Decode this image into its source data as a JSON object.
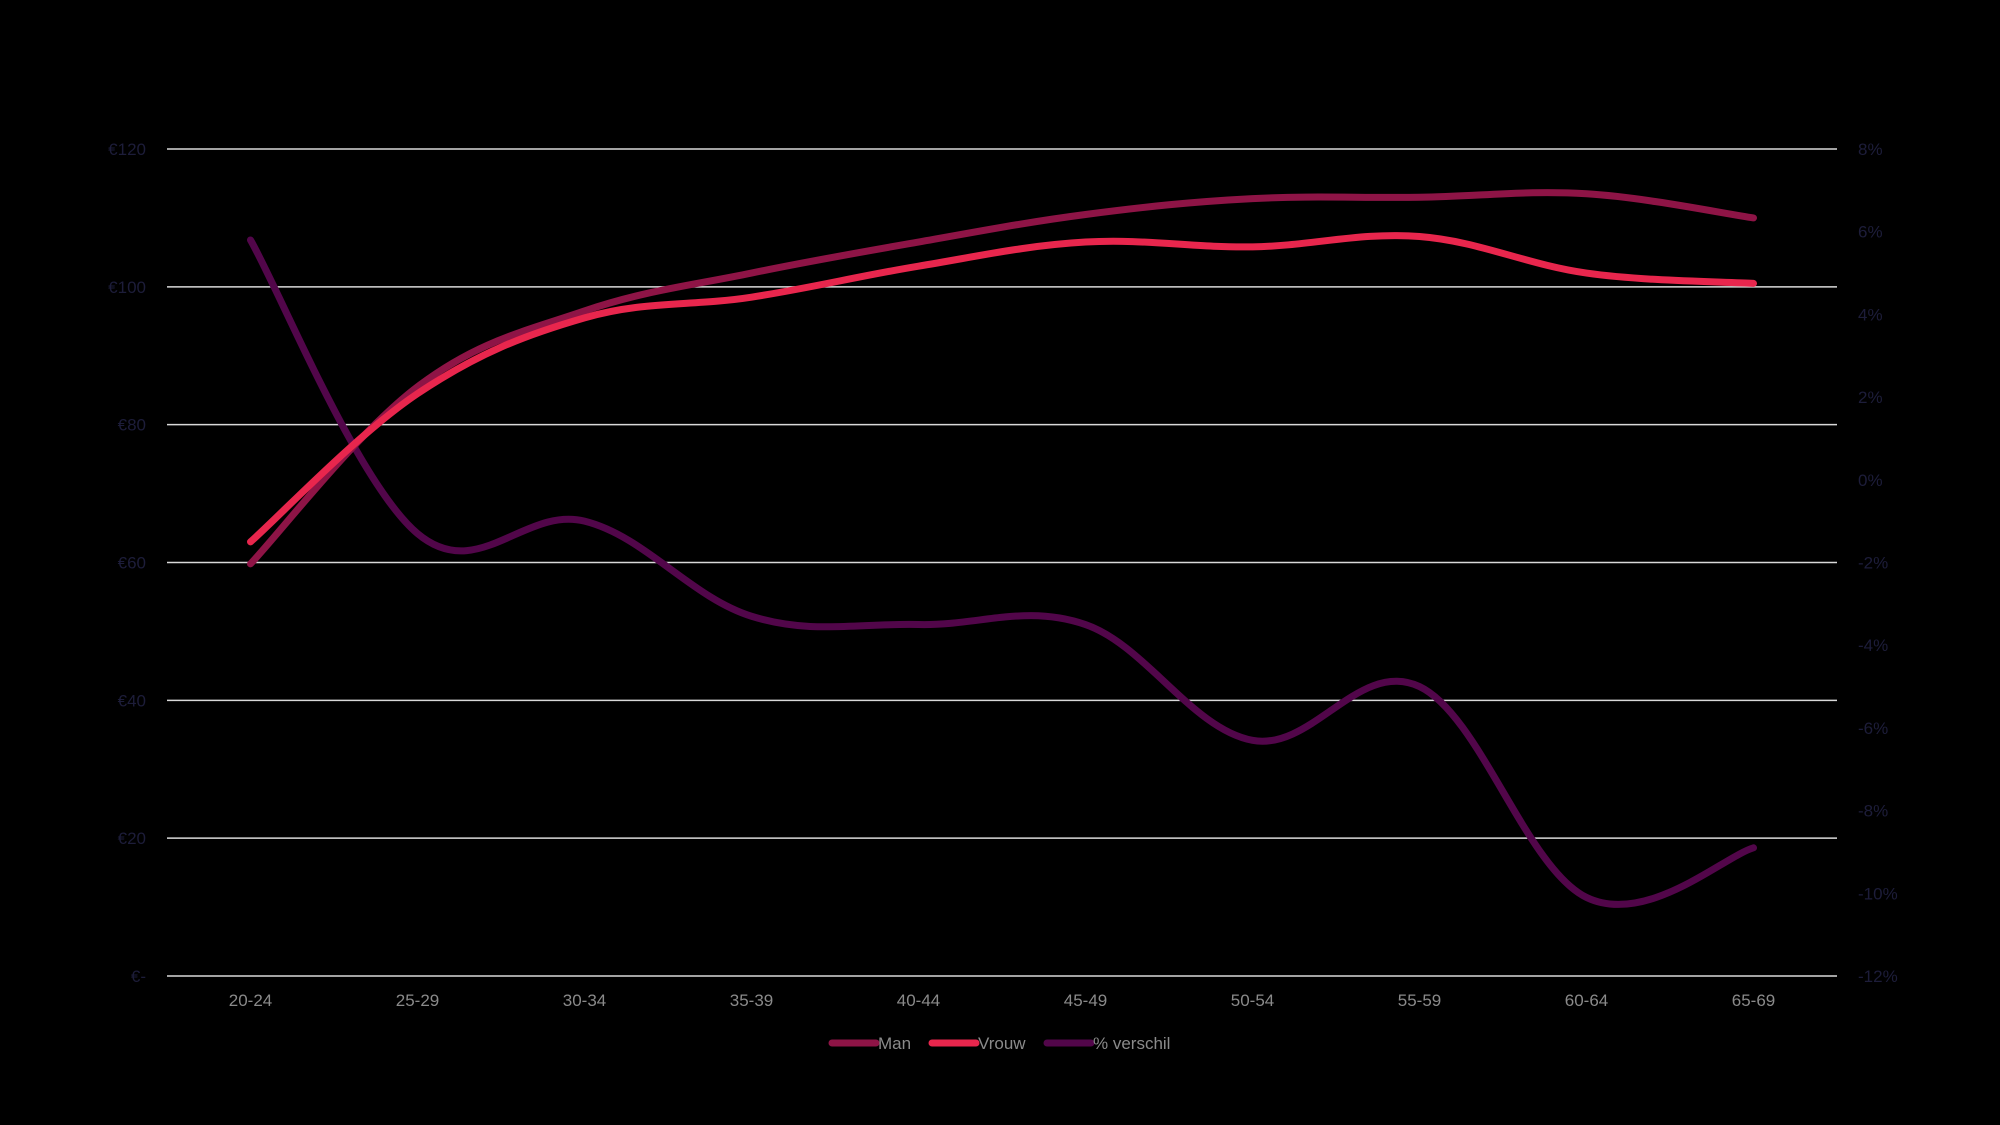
{
  "chart_data": {
    "type": "line",
    "title": "",
    "xlabel": "",
    "ylabel": "",
    "categories": [
      "20-24",
      "25-29",
      "30-34",
      "35-39",
      "40-44",
      "45-49",
      "50-54",
      "55-59",
      "60-64",
      "65-69"
    ],
    "y_left": {
      "ticks": [
        0,
        20,
        40,
        60,
        80,
        100,
        120
      ],
      "tick_labels": [
        "€-",
        "€20",
        "€40",
        "€60",
        "€80",
        "€100",
        "€120"
      ],
      "ylim": [
        0,
        120
      ]
    },
    "y_right": {
      "ticks": [
        -12,
        -10,
        -8,
        -6,
        -4,
        -2,
        0,
        2,
        4,
        6,
        8
      ],
      "tick_labels": [
        "-12%",
        "-10%",
        "-8%",
        "-6%",
        "-4%",
        "-2%",
        "0%",
        "2%",
        "4%",
        "6%",
        "8%"
      ],
      "ylim": [
        -12,
        8
      ]
    },
    "series": [
      {
        "name": "Man",
        "axis": "left",
        "color": "#8e1446",
        "values": [
          59.8,
          85.5,
          96.5,
          102.0,
          106.5,
          110.5,
          112.8,
          113.0,
          113.5,
          110.0
        ]
      },
      {
        "name": "Vrouw",
        "axis": "left",
        "color": "#e8264d",
        "values": [
          63.0,
          84.5,
          95.5,
          98.5,
          103.0,
          106.5,
          105.8,
          107.3,
          102.0,
          100.5
        ]
      },
      {
        "name": "% verschil",
        "axis": "right",
        "color": "#52064a",
        "values": [
          5.8,
          -1.3,
          -1.0,
          -3.3,
          -3.5,
          -3.5,
          -6.3,
          -5.0,
          -10.1,
          -8.9
        ]
      }
    ],
    "grid": true,
    "legend_position": "bottom-center"
  }
}
